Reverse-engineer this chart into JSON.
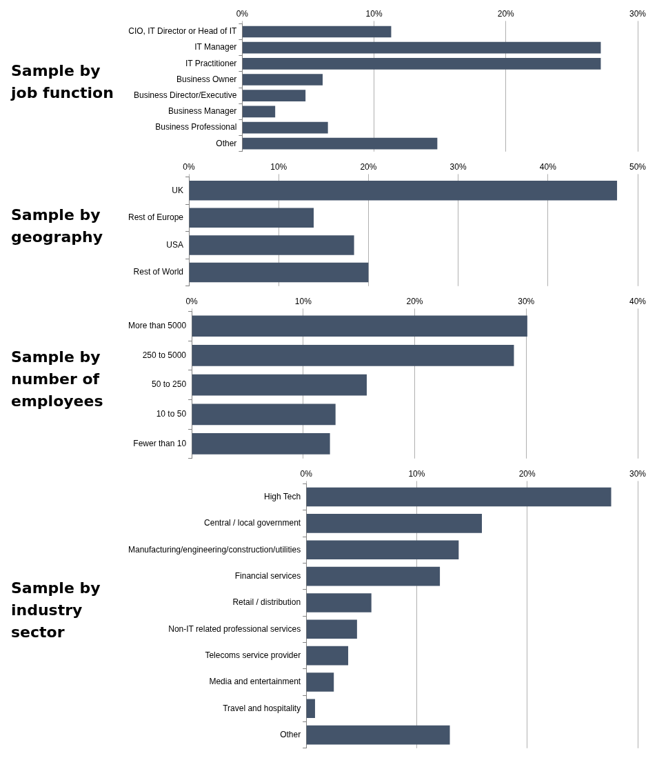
{
  "chart_data": [
    {
      "type": "bar",
      "orientation": "horizontal",
      "title": "Sample by job function",
      "categories": [
        "CIO, IT Director or Head of IT",
        "IT Manager",
        "IT Practitioner",
        "Business Owner",
        "Business Director/Executive",
        "Business Manager",
        "Business Professional",
        "Other"
      ],
      "values": [
        11.3,
        27.2,
        27.2,
        6.1,
        4.8,
        2.5,
        6.5,
        14.8
      ],
      "color": "#44546a",
      "xlim": [
        0,
        30
      ],
      "xticks": [
        {
          "value": 0,
          "label": "0%"
        },
        {
          "value": 10,
          "label": "10%"
        },
        {
          "value": 20,
          "label": "20%"
        },
        {
          "value": 30,
          "label": "30%"
        }
      ],
      "grid": "x",
      "legend": false
    },
    {
      "type": "bar",
      "orientation": "horizontal",
      "title": "Sample by geography",
      "categories": [
        "UK",
        "Rest of Europe",
        "USA",
        "Rest of World"
      ],
      "values": [
        47.7,
        13.9,
        18.4,
        20.0
      ],
      "color": "#44546a",
      "xlim": [
        0,
        50
      ],
      "xticks": [
        {
          "value": 0,
          "label": "0%"
        },
        {
          "value": 10,
          "label": "10%"
        },
        {
          "value": 20,
          "label": "20%"
        },
        {
          "value": 30,
          "label": "30%"
        },
        {
          "value": 40,
          "label": "40%"
        },
        {
          "value": 50,
          "label": "50%"
        }
      ],
      "grid": "x",
      "legend": false
    },
    {
      "type": "bar",
      "orientation": "horizontal",
      "title": "Sample by number of employees",
      "categories": [
        "More than 5000",
        "250 to 5000",
        "50 to 250",
        "10 to 50",
        "Fewer than 10"
      ],
      "values": [
        30.1,
        28.9,
        15.7,
        12.9,
        12.4
      ],
      "color": "#44546a",
      "xlim": [
        0,
        40
      ],
      "xticks": [
        {
          "value": 0,
          "label": "0%"
        },
        {
          "value": 10,
          "label": "10%"
        },
        {
          "value": 20,
          "label": "20%"
        },
        {
          "value": 30,
          "label": "30%"
        },
        {
          "value": 40,
          "label": "40%"
        }
      ],
      "grid": "x",
      "legend": false
    },
    {
      "type": "bar",
      "orientation": "horizontal",
      "title": "Sample by industry sector",
      "categories": [
        "High Tech",
        "Central / local government",
        "Manufacturing/engineering/construction/utilities",
        "Financial services",
        "Retail / distribution",
        "Non-IT related professional services",
        "Telecoms service provider",
        "Media and entertainment",
        "Travel and hospitality",
        "Other"
      ],
      "values": [
        27.6,
        15.9,
        13.8,
        12.1,
        5.9,
        4.6,
        3.8,
        2.5,
        0.8,
        13.0
      ],
      "color": "#44546a",
      "xlim": [
        0,
        30
      ],
      "xticks": [
        {
          "value": 0,
          "label": "0%"
        },
        {
          "value": 10,
          "label": "10%"
        },
        {
          "value": 20,
          "label": "20%"
        },
        {
          "value": 30,
          "label": "30%"
        }
      ],
      "grid": "x",
      "legend": false
    }
  ]
}
